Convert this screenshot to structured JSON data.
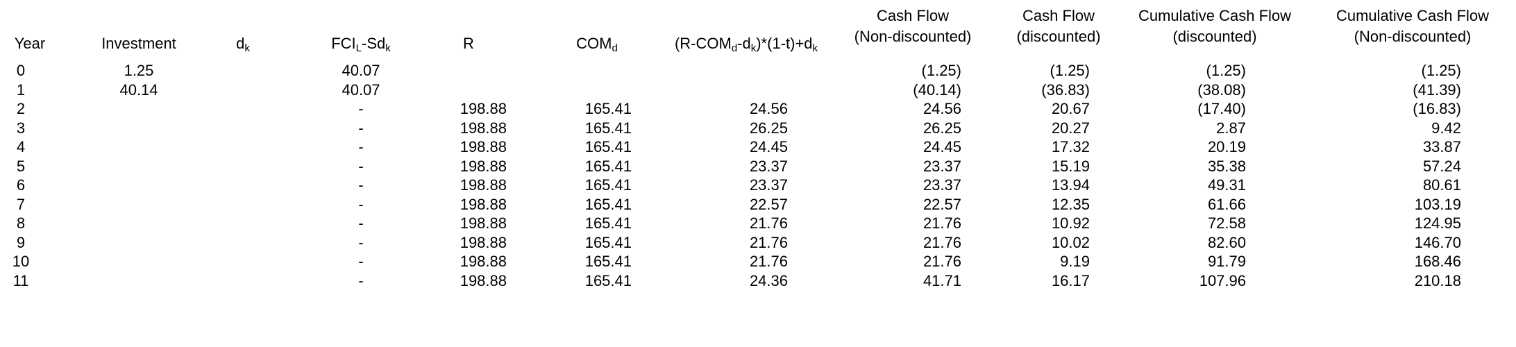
{
  "headers": {
    "year": "Year",
    "investment": "Investment",
    "dk": {
      "main": "d",
      "sub": "k"
    },
    "fcl": {
      "a": "FCI",
      "a_sub": "L",
      "b": "-Sd",
      "b_sub": "k"
    },
    "r": "R",
    "comd": {
      "main": "COM",
      "sub": "d"
    },
    "formula": {
      "a": "(R-COM",
      "a_sub": "d",
      "b": "-d",
      "b_sub": "k",
      "c": ")*(1-t)+d",
      "c_sub": "k"
    },
    "cash_flow_nd": {
      "line1": "Cash Flow",
      "line2": "(Non-discounted)"
    },
    "cash_flow_d": {
      "line1": "Cash Flow",
      "line2": "(discounted)"
    },
    "cum_cash_flow_d": {
      "line1": "Cumulative Cash Flow",
      "line2": "(discounted)"
    },
    "cum_cash_flow_nd": {
      "line1": "Cumulative Cash Flow",
      "line2": "(Non-discounted)"
    }
  },
  "rows": [
    {
      "year": "0",
      "investment": "1.25",
      "fcl": "40.07",
      "r": "",
      "comd": "",
      "formula": "",
      "cf_nd": "(1.25)",
      "cf_d": "(1.25)",
      "ccf_d": "(1.25)",
      "ccf_nd": "(1.25)"
    },
    {
      "year": "1",
      "investment": "40.14",
      "fcl": "40.07",
      "r": "",
      "comd": "",
      "formula": "",
      "cf_nd": "(40.14)",
      "cf_d": "(36.83)",
      "ccf_d": "(38.08)",
      "ccf_nd": "(41.39)"
    },
    {
      "year": "2",
      "investment": "",
      "fcl": "-",
      "r": "198.88",
      "comd": "165.41",
      "formula": "24.56",
      "cf_nd": "24.56",
      "cf_d": "20.67",
      "ccf_d": "(17.40)",
      "ccf_nd": "(16.83)"
    },
    {
      "year": "3",
      "investment": "",
      "fcl": "-",
      "r": "198.88",
      "comd": "165.41",
      "formula": "26.25",
      "cf_nd": "26.25",
      "cf_d": "20.27",
      "ccf_d": "2.87",
      "ccf_nd": "9.42"
    },
    {
      "year": "4",
      "investment": "",
      "fcl": "-",
      "r": "198.88",
      "comd": "165.41",
      "formula": "24.45",
      "cf_nd": "24.45",
      "cf_d": "17.32",
      "ccf_d": "20.19",
      "ccf_nd": "33.87"
    },
    {
      "year": "5",
      "investment": "",
      "fcl": "-",
      "r": "198.88",
      "comd": "165.41",
      "formula": "23.37",
      "cf_nd": "23.37",
      "cf_d": "15.19",
      "ccf_d": "35.38",
      "ccf_nd": "57.24"
    },
    {
      "year": "6",
      "investment": "",
      "fcl": "-",
      "r": "198.88",
      "comd": "165.41",
      "formula": "23.37",
      "cf_nd": "23.37",
      "cf_d": "13.94",
      "ccf_d": "49.31",
      "ccf_nd": "80.61"
    },
    {
      "year": "7",
      "investment": "",
      "fcl": "-",
      "r": "198.88",
      "comd": "165.41",
      "formula": "22.57",
      "cf_nd": "22.57",
      "cf_d": "12.35",
      "ccf_d": "61.66",
      "ccf_nd": "103.19"
    },
    {
      "year": "8",
      "investment": "",
      "fcl": "-",
      "r": "198.88",
      "comd": "165.41",
      "formula": "21.76",
      "cf_nd": "21.76",
      "cf_d": "10.92",
      "ccf_d": "72.58",
      "ccf_nd": "124.95"
    },
    {
      "year": "9",
      "investment": "",
      "fcl": "-",
      "r": "198.88",
      "comd": "165.41",
      "formula": "21.76",
      "cf_nd": "21.76",
      "cf_d": "10.02",
      "ccf_d": "82.60",
      "ccf_nd": "146.70"
    },
    {
      "year": "10",
      "investment": "",
      "fcl": "-",
      "r": "198.88",
      "comd": "165.41",
      "formula": "21.76",
      "cf_nd": "21.76",
      "cf_d": "9.19",
      "ccf_d": "91.79",
      "ccf_nd": "168.46"
    },
    {
      "year": "11",
      "investment": "",
      "fcl": "-",
      "r": "198.88",
      "comd": "165.41",
      "formula": "24.36",
      "cf_nd": "41.71",
      "cf_d": "16.17",
      "ccf_d": "107.96",
      "ccf_nd": "210.18"
    }
  ]
}
